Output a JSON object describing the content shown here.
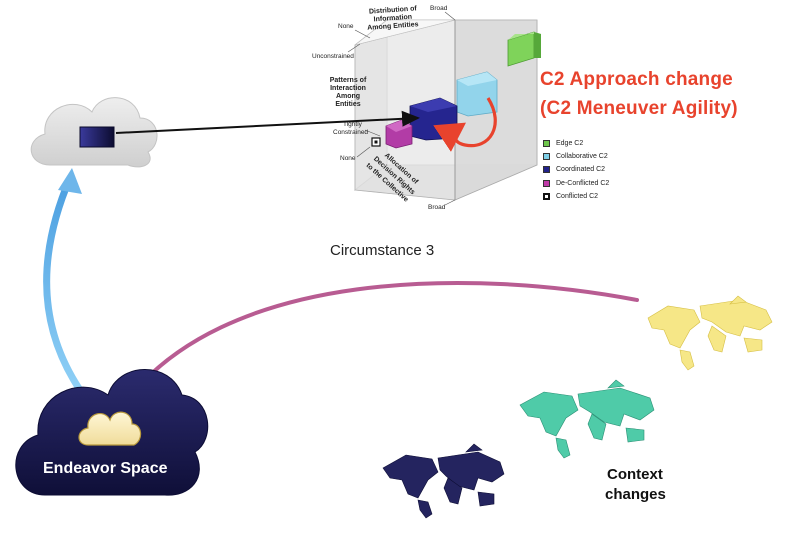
{
  "title_line1": "C2 Approach change",
  "title_line2": "(C2 Meneuver Agility)",
  "circumstance_label": "Circumstance 3",
  "endeavor_label": "Endeavor Space",
  "context_line1": "Context",
  "context_line2": "changes",
  "cube": {
    "axis_top": "Distribution of Information Among Entities",
    "axis_top_lines": [
      "Distribution of",
      "Information",
      "Among Entities"
    ],
    "axis_left_lines": [
      "Patterns of",
      "Interaction",
      "Among",
      "Entities"
    ],
    "axis_bottom_lines": [
      "Allocation of",
      "Decision Rights",
      "to the Collective"
    ],
    "tick_none_top": "None",
    "tick_broad_top": "Broad",
    "tick_unconstrained": "Unconstrained",
    "tick_tightly": "Tightly",
    "tick_constrained": "Constrained",
    "tick_none_bottom": "None",
    "tick_broad_bottom": "Broad"
  },
  "legend": [
    {
      "label": "Edge C2",
      "color": "#6dc54a"
    },
    {
      "label": "Collaborative C2",
      "color": "#7fd0e8"
    },
    {
      "label": "Coordinated C2",
      "color": "#22228a"
    },
    {
      "label": "De-Conflicted C2",
      "color": "#c03aa8"
    },
    {
      "label": "Conflicted C2",
      "color": "#ffffff"
    }
  ],
  "colors": {
    "accent": "#e8432d",
    "endeavor_cloud": "#1c1c52",
    "blue_arrow": "#6eb6ea",
    "purple_arrow": "#b04a86",
    "map_yellow": "#f2e27a",
    "map_teal": "#48c9a8",
    "map_navy": "#1f1f5e"
  }
}
